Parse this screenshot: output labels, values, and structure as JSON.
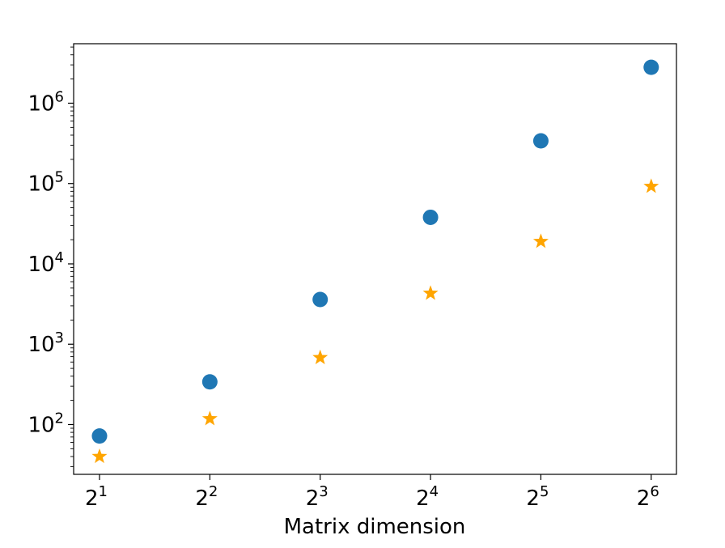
{
  "chart_data": {
    "type": "scatter",
    "title": "",
    "xlabel": "Matrix dimension",
    "ylabel": "",
    "x_scale": "log2",
    "y_scale": "log10",
    "x": [
      2,
      4,
      8,
      16,
      32,
      64
    ],
    "x_tick_labels": [
      {
        "base": "2",
        "exp": "1"
      },
      {
        "base": "2",
        "exp": "2"
      },
      {
        "base": "2",
        "exp": "3"
      },
      {
        "base": "2",
        "exp": "4"
      },
      {
        "base": "2",
        "exp": "5"
      },
      {
        "base": "2",
        "exp": "6"
      }
    ],
    "y_tick_values": [
      100,
      1000,
      10000,
      100000,
      1000000
    ],
    "y_tick_labels": [
      {
        "base": "10",
        "exp": "2"
      },
      {
        "base": "10",
        "exp": "3"
      },
      {
        "base": "10",
        "exp": "4"
      },
      {
        "base": "10",
        "exp": "5"
      },
      {
        "base": "10",
        "exp": "6"
      }
    ],
    "xlim": [
      1.7,
      75
    ],
    "ylim": [
      24,
      5500000
    ],
    "grid": false,
    "legend": "none",
    "series": [
      {
        "marker": "circle",
        "color": "#1f77b4",
        "values": [
          72,
          340,
          3600,
          38000,
          340000,
          2800000
        ]
      },
      {
        "marker": "star",
        "color": "#ffa500",
        "values": [
          40,
          118,
          680,
          4300,
          19000,
          92000
        ]
      }
    ]
  }
}
